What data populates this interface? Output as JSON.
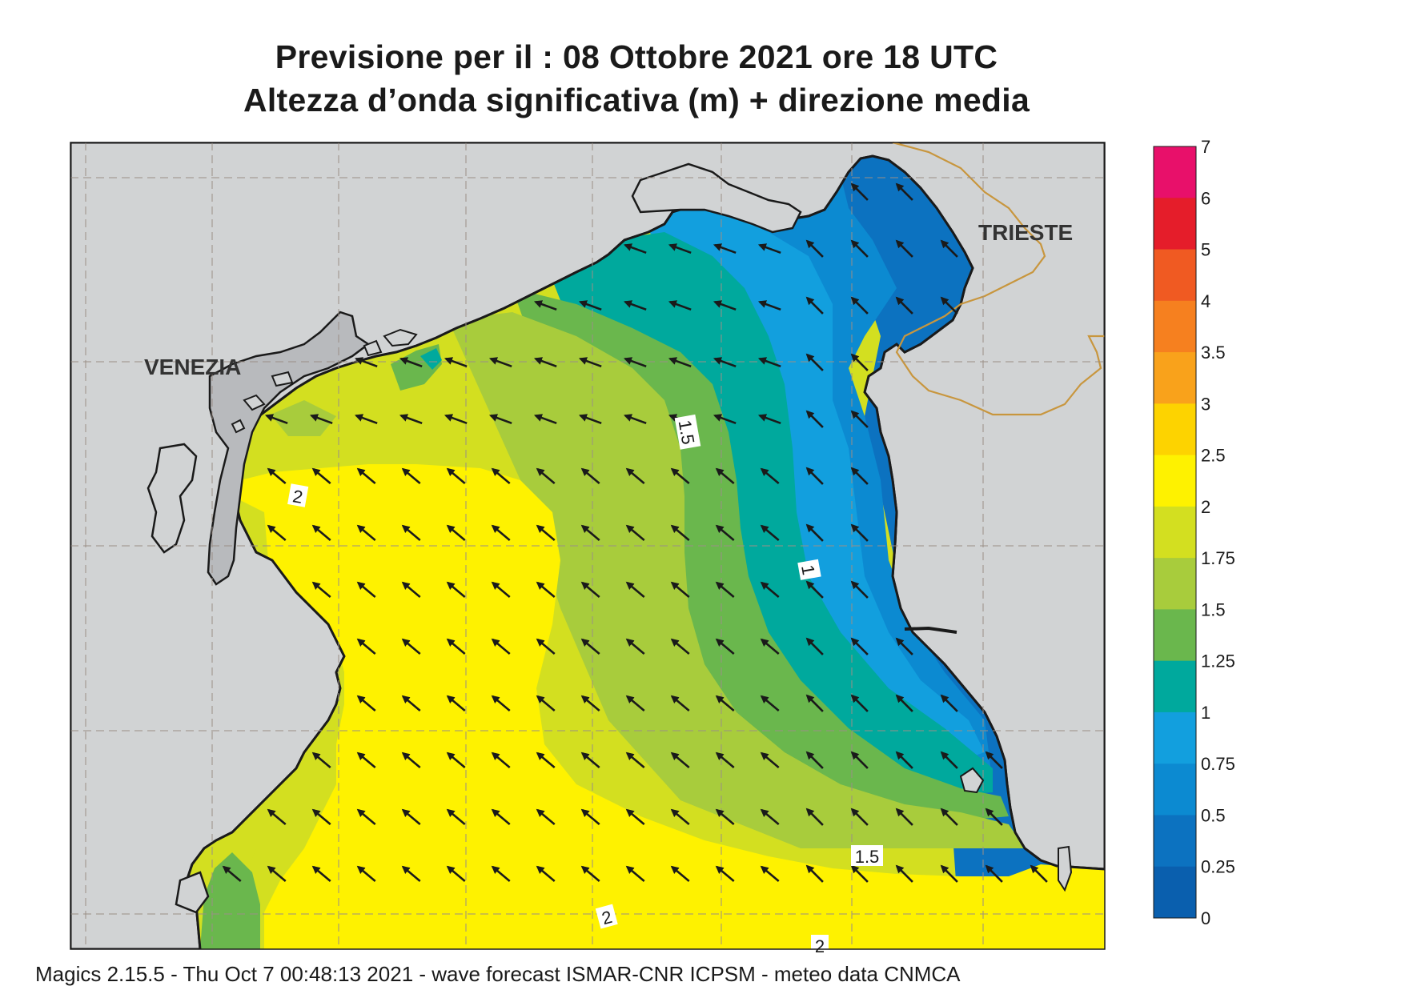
{
  "title": {
    "line1": "Previsione per il  :  08  Ottobre  2021   ore 18 UTC",
    "line2": "Altezza d’onda significativa (m) + direzione media"
  },
  "places": {
    "venezia": "VENEZIA",
    "trieste": "TRIESTE"
  },
  "contour_labels": [
    "1.5",
    "2",
    "1",
    "1.5",
    "2",
    "2"
  ],
  "legend": {
    "levels": [
      "7",
      "6",
      "5",
      "4",
      "3.5",
      "3",
      "2.5",
      "2",
      "1.75",
      "1.5",
      "1.25",
      "1",
      "0.75",
      "0.5",
      "0.25",
      "0"
    ],
    "colors": [
      "#e8106a",
      "#e51d2a",
      "#f05a22",
      "#f6801f",
      "#f9a21b",
      "#fdd300",
      "#fef200",
      "#d3df20",
      "#a8cc3c",
      "#6ab74d",
      "#00a99d",
      "#129fde",
      "#0c8ad1",
      "#0c72c0",
      "#0a5fae"
    ]
  },
  "colors": {
    "land": "#d1d3d4",
    "coast": "#1a1a1a",
    "border": "#c8963e",
    "grid": "#9a8f86",
    "arrow": "#1a1a1a"
  },
  "footer": "Magics 2.15.5 - Thu Oct  7 00:48:13 2021 - wave forecast  ISMAR-CNR  ICPSM - meteo data   CNMCA"
}
